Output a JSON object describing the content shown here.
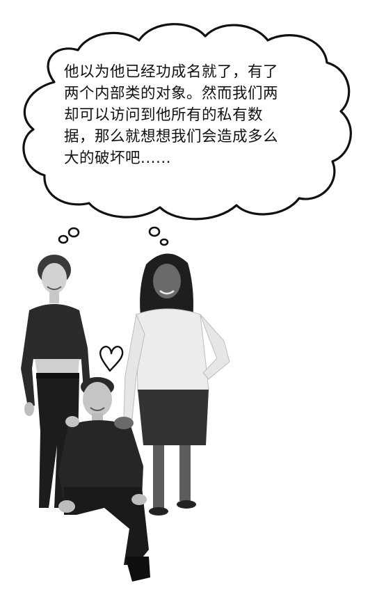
{
  "thought_bubble": {
    "lines": [
      "他以为他已经功成名就了，有了",
      "两个内部类的对象。然而我们两",
      "却可以访问到他所有的私有数",
      "据，那么就想想我们会造成多么",
      "大的破坏吧......"
    ]
  },
  "colors": {
    "ink": "#111111",
    "background": "#ffffff"
  },
  "icons": [
    "thought-bubble",
    "heart-doodle"
  ]
}
